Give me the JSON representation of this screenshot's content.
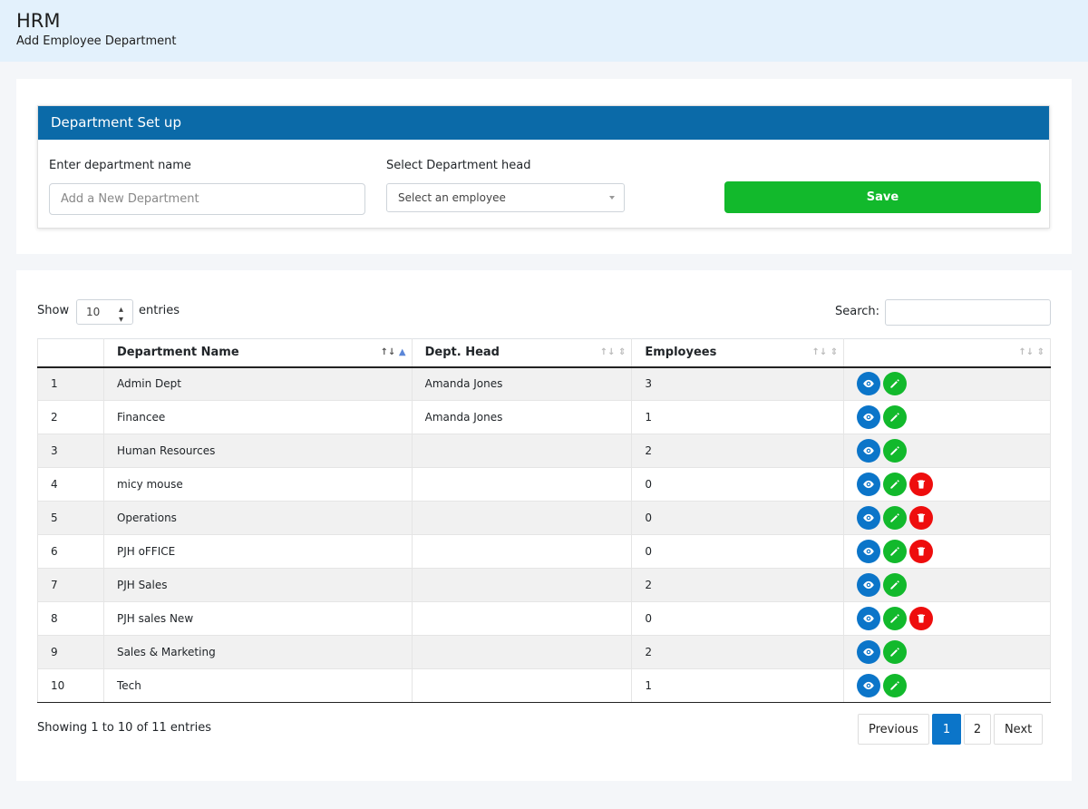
{
  "header": {
    "app_title": "HRM",
    "subtitle": "Add Employee Department"
  },
  "setup": {
    "panel_title": "Department Set up",
    "dept_label": "Enter department name",
    "dept_placeholder": "Add a New Department",
    "head_label": "Select Department head",
    "head_value": "Select an employee",
    "save_label": "Save"
  },
  "table_controls": {
    "show_label": "Show",
    "page_length": "10",
    "entries_label": "entries",
    "search_label": "Search:"
  },
  "columns": [
    "",
    "Department Name",
    "Dept. Head",
    "Employees",
    ""
  ],
  "rows": [
    {
      "num": "1",
      "name": "Admin Dept",
      "head": "Amanda Jones",
      "employees": "3",
      "can_delete": false
    },
    {
      "num": "2",
      "name": "Financee",
      "head": "Amanda Jones",
      "employees": "1",
      "can_delete": false
    },
    {
      "num": "3",
      "name": "Human Resources",
      "head": "",
      "employees": "2",
      "can_delete": false
    },
    {
      "num": "4",
      "name": "micy mouse",
      "head": "",
      "employees": "0",
      "can_delete": true
    },
    {
      "num": "5",
      "name": "Operations",
      "head": "",
      "employees": "0",
      "can_delete": true
    },
    {
      "num": "6",
      "name": "PJH oFFICE",
      "head": "",
      "employees": "0",
      "can_delete": true
    },
    {
      "num": "7",
      "name": "PJH Sales",
      "head": "",
      "employees": "2",
      "can_delete": false
    },
    {
      "num": "8",
      "name": "PJH sales New",
      "head": "",
      "employees": "0",
      "can_delete": true
    },
    {
      "num": "9",
      "name": "Sales & Marketing",
      "head": "",
      "employees": "2",
      "can_delete": false
    },
    {
      "num": "10",
      "name": "Tech",
      "head": "",
      "employees": "1",
      "can_delete": false
    }
  ],
  "footer": {
    "info": "Showing 1 to 10 of 11 entries",
    "previous": "Previous",
    "pages": [
      "1",
      "2"
    ],
    "current_page": "1",
    "next": "Next"
  },
  "colors": {
    "header_bg": "#e3f1fc",
    "panel_blue": "#0b6aa8",
    "save_green": "#12b92c",
    "view_blue": "#0b75c9",
    "delete_red": "#ee0d0d"
  },
  "icons": {
    "view": "eye-icon",
    "edit": "pencil-icon",
    "delete": "trash-icon"
  }
}
